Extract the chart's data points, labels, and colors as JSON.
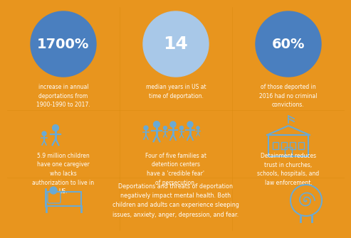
{
  "bg_color": "#E8951E",
  "circle_color_1": "#4A7FBF",
  "circle_color_2": "#A8C8E8",
  "circle_color_3": "#4A7FBF",
  "text_color_white": "#FFFFFF",
  "text_color_blue": "#4A7FBF",
  "icon_color": "#6AAAD4",
  "stat1": "1700%",
  "stat1_desc": "increase in annual\ndeportations from\n1900-1990 to 2017.",
  "stat2": "14",
  "stat2_desc": "median years in US at\ntime of deportation.",
  "stat3": "60%",
  "stat3_desc": "of those deported in\n2016 had no criminal\nconvictions.",
  "fact1": "5.9 million children\nhave one caregiver\nwho lacks\nauthorization to live in\nUS.",
  "fact2": "Four of five families at\ndetention centers\nhave a 'credible fear'\nof persecution.",
  "fact3": "Detainment reduces\ntrust in churches,\nschools, hospitals, and\nlaw enforcement.",
  "bottom_text": "Deportations and threats of deportation\nnegatively impact mental health. Both\nchildren and adults can experience sleeping\nissues, anxiety, anger, depression, and fear."
}
